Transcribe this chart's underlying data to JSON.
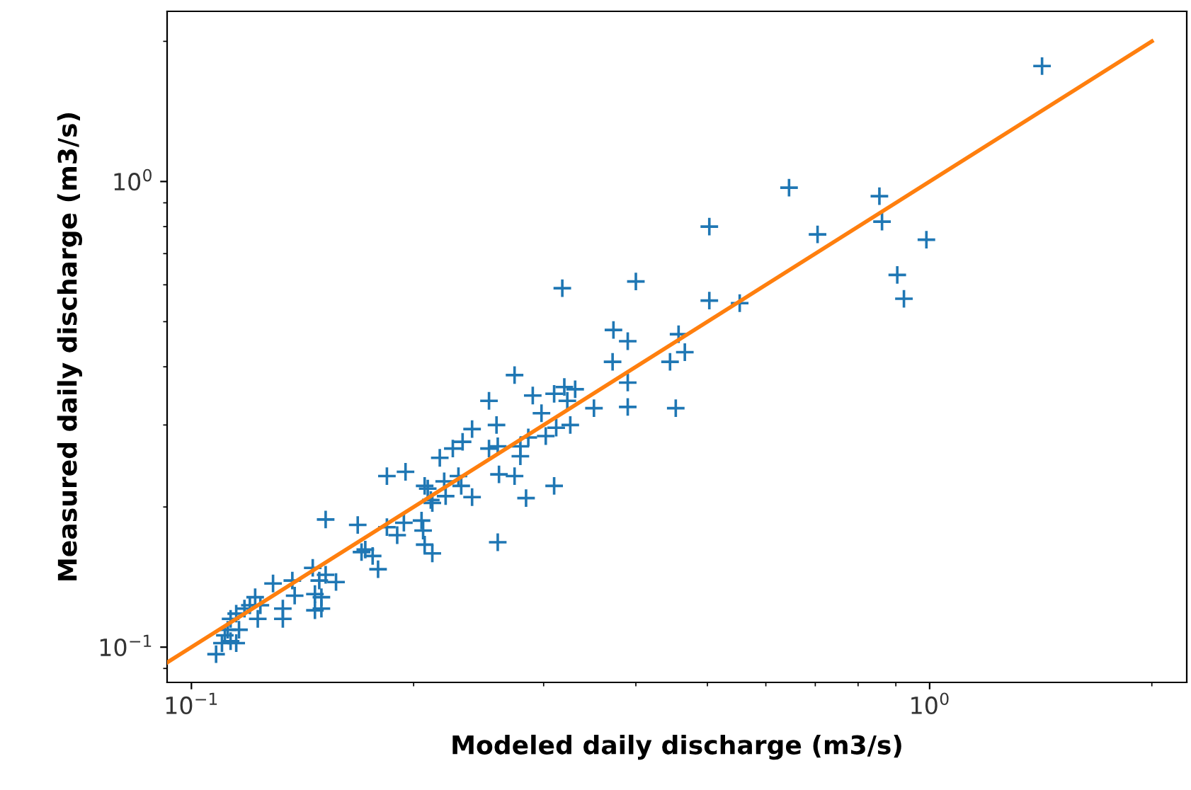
{
  "chart_data": {
    "type": "scatter",
    "xlabel": "Modeled daily discharge (m3/s)",
    "ylabel": "Measured daily discharge (m3/s)",
    "log": "xy",
    "grid": false,
    "xlim": [
      0.0927,
      2.23
    ],
    "ylim": [
      0.084,
      2.32
    ],
    "xticks": [
      {
        "value": 0.1,
        "label": "10$^{−1}$"
      },
      {
        "value": 1,
        "label": "10$^{0}$"
      }
    ],
    "yticks": [
      {
        "value": 0.1,
        "label": "10$^{−1}$"
      },
      {
        "value": 1,
        "label": "10$^{0}$"
      }
    ],
    "series": [
      {
        "color": "#1f77b4",
        "marker": "cross",
        "x": [
          1.42,
          0.645,
          0.855,
          0.862,
          0.503,
          0.705,
          0.99,
          0.904,
          0.923,
          0.503,
          0.553,
          0.318,
          0.4,
          0.373,
          0.39,
          0.457,
          0.466,
          0.445,
          0.372,
          0.39,
          0.274,
          0.253,
          0.29,
          0.32,
          0.31,
          0.331,
          0.323,
          0.298,
          0.351,
          0.39,
          0.453,
          0.312,
          0.24,
          0.259,
          0.286,
          0.302,
          0.253,
          0.26,
          0.226,
          0.217,
          0.233,
          0.279,
          0.279,
          0.261,
          0.274,
          0.23,
          0.184,
          0.195,
          0.207,
          0.232,
          0.221,
          0.24,
          0.211,
          0.284,
          0.31,
          0.326,
          0.22,
          0.209,
          0.212,
          0.26,
          0.152,
          0.168,
          0.184,
          0.194,
          0.19,
          0.205,
          0.206,
          0.207,
          0.212,
          0.17,
          0.176,
          0.172,
          0.179,
          0.146,
          0.152,
          0.157,
          0.149,
          0.147,
          0.15,
          0.147,
          0.15,
          0.137,
          0.138,
          0.133,
          0.133,
          0.129,
          0.122,
          0.124,
          0.123,
          0.12,
          0.118,
          0.115,
          0.113,
          0.111,
          0.113,
          0.11,
          0.115,
          0.108,
          0.112,
          0.116
        ],
        "values": [
          1.77,
          0.97,
          0.93,
          0.82,
          0.8,
          0.77,
          0.75,
          0.63,
          0.56,
          0.555,
          0.548,
          0.59,
          0.61,
          0.48,
          0.454,
          0.47,
          0.43,
          0.41,
          0.41,
          0.37,
          0.384,
          0.338,
          0.347,
          0.362,
          0.35,
          0.358,
          0.338,
          0.318,
          0.326,
          0.328,
          0.326,
          0.296,
          0.294,
          0.3,
          0.282,
          0.284,
          0.267,
          0.27,
          0.267,
          0.255,
          0.276,
          0.27,
          0.257,
          0.235,
          0.233,
          0.233,
          0.233,
          0.238,
          0.222,
          0.222,
          0.211,
          0.21,
          0.207,
          0.209,
          0.222,
          0.3,
          0.227,
          0.219,
          0.204,
          0.168,
          0.188,
          0.183,
          0.181,
          0.185,
          0.174,
          0.187,
          0.178,
          0.166,
          0.159,
          0.16,
          0.157,
          0.162,
          0.147,
          0.148,
          0.143,
          0.138,
          0.139,
          0.13,
          0.121,
          0.12,
          0.128,
          0.139,
          0.129,
          0.121,
          0.115,
          0.137,
          0.128,
          0.123,
          0.115,
          0.123,
          0.121,
          0.118,
          0.115,
          0.106,
          0.103,
          0.102,
          0.102,
          0.0966,
          0.109,
          0.109
        ]
      },
      {
        "type": "line",
        "color": "#ff7f0e",
        "marker": "none",
        "line_style": "solid",
        "x": [
          0.0927,
          2.0
        ],
        "values": [
          0.0927,
          2.0
        ]
      }
    ]
  }
}
